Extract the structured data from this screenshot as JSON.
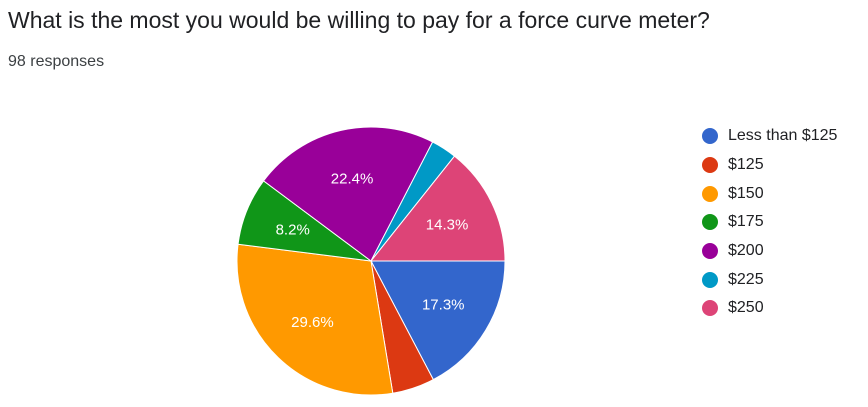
{
  "header": {
    "title": "What is the most you would be willing to pay for a force curve meter?",
    "responses": "98 responses"
  },
  "chart_data": {
    "type": "pie",
    "title": "What is the most you would be willing to pay for a force curve meter?",
    "total_responses": 98,
    "legend_position": "right",
    "start_angle_deg": 90,
    "direction": "clockwise",
    "slices": [
      {
        "label": "Less than $125",
        "percent": 17.3,
        "color": "#3366cc",
        "show_label": true,
        "data_label": "17.3%"
      },
      {
        "label": "$125",
        "percent": 5.1,
        "color": "#dc3912",
        "show_label": false,
        "data_label": ""
      },
      {
        "label": "$150",
        "percent": 29.6,
        "color": "#ff9900",
        "show_label": true,
        "data_label": "29.6%"
      },
      {
        "label": "$175",
        "percent": 8.2,
        "color": "#109618",
        "show_label": true,
        "data_label": "8.2%"
      },
      {
        "label": "$200",
        "percent": 22.4,
        "color": "#990099",
        "show_label": true,
        "data_label": "22.4%"
      },
      {
        "label": "$225",
        "percent": 3.1,
        "color": "#0099c6",
        "show_label": false,
        "data_label": ""
      },
      {
        "label": "$250",
        "percent": 14.3,
        "color": "#dd4477",
        "show_label": true,
        "data_label": "14.3%"
      }
    ]
  }
}
